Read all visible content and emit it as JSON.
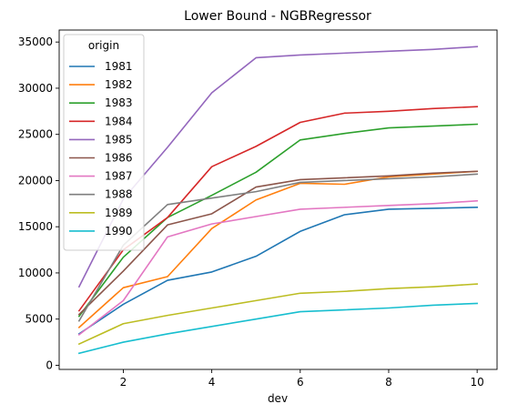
{
  "chart_data": {
    "type": "line",
    "title": "Lower Bound - NGBRegressor",
    "xlabel": "dev",
    "ylabel": "",
    "xlim": [
      0.55,
      10.45
    ],
    "ylim": [
      -450,
      36300
    ],
    "xticks": [
      2,
      4,
      6,
      8,
      10
    ],
    "yticks": [
      0,
      5000,
      10000,
      15000,
      20000,
      25000,
      30000,
      35000
    ],
    "grid": false,
    "legend": {
      "title": "origin",
      "placement": "upper-left"
    },
    "x": [
      1,
      2,
      3,
      4,
      5,
      6,
      7,
      8,
      9,
      10
    ],
    "series": [
      {
        "name": "1981",
        "color": "#1f77b4",
        "values": [
          3400,
          6600,
          9200,
          10100,
          11800,
          14500,
          16300,
          16900,
          17000,
          17100
        ]
      },
      {
        "name": "1982",
        "color": "#ff7f0e",
        "values": [
          4100,
          8400,
          9600,
          14800,
          17900,
          19700,
          19600,
          20400,
          20700,
          21000
        ]
      },
      {
        "name": "1983",
        "color": "#2ca02c",
        "values": [
          5300,
          11700,
          16000,
          18400,
          20900,
          24400,
          25100,
          25700,
          25900,
          26100
        ]
      },
      {
        "name": "1984",
        "color": "#d62728",
        "values": [
          5900,
          12500,
          16000,
          21500,
          23700,
          26300,
          27300,
          27500,
          27800,
          28000
        ]
      },
      {
        "name": "1985",
        "color": "#9467bd",
        "values": [
          8500,
          18000,
          23600,
          29500,
          33300,
          33600,
          33800,
          34000,
          34200,
          34500
        ]
      },
      {
        "name": "1986",
        "color": "#8c564b",
        "values": [
          5500,
          10200,
          15200,
          16400,
          19300,
          20100,
          20300,
          20500,
          20800,
          21000
        ]
      },
      {
        "name": "1987",
        "color": "#e377c2",
        "values": [
          3300,
          7000,
          13900,
          15300,
          16100,
          16900,
          17100,
          17300,
          17500,
          17800
        ]
      },
      {
        "name": "1988",
        "color": "#7f7f7f",
        "values": [
          4800,
          13000,
          17400,
          18100,
          18800,
          19800,
          20000,
          20200,
          20400,
          20700
        ]
      },
      {
        "name": "1989",
        "color": "#bcbd22",
        "values": [
          2300,
          4500,
          5400,
          6200,
          7000,
          7800,
          8000,
          8300,
          8500,
          8800
        ]
      },
      {
        "name": "1990",
        "color": "#17becf",
        "values": [
          1300,
          2500,
          3400,
          4200,
          5000,
          5800,
          6000,
          6200,
          6500,
          6700
        ]
      }
    ]
  }
}
